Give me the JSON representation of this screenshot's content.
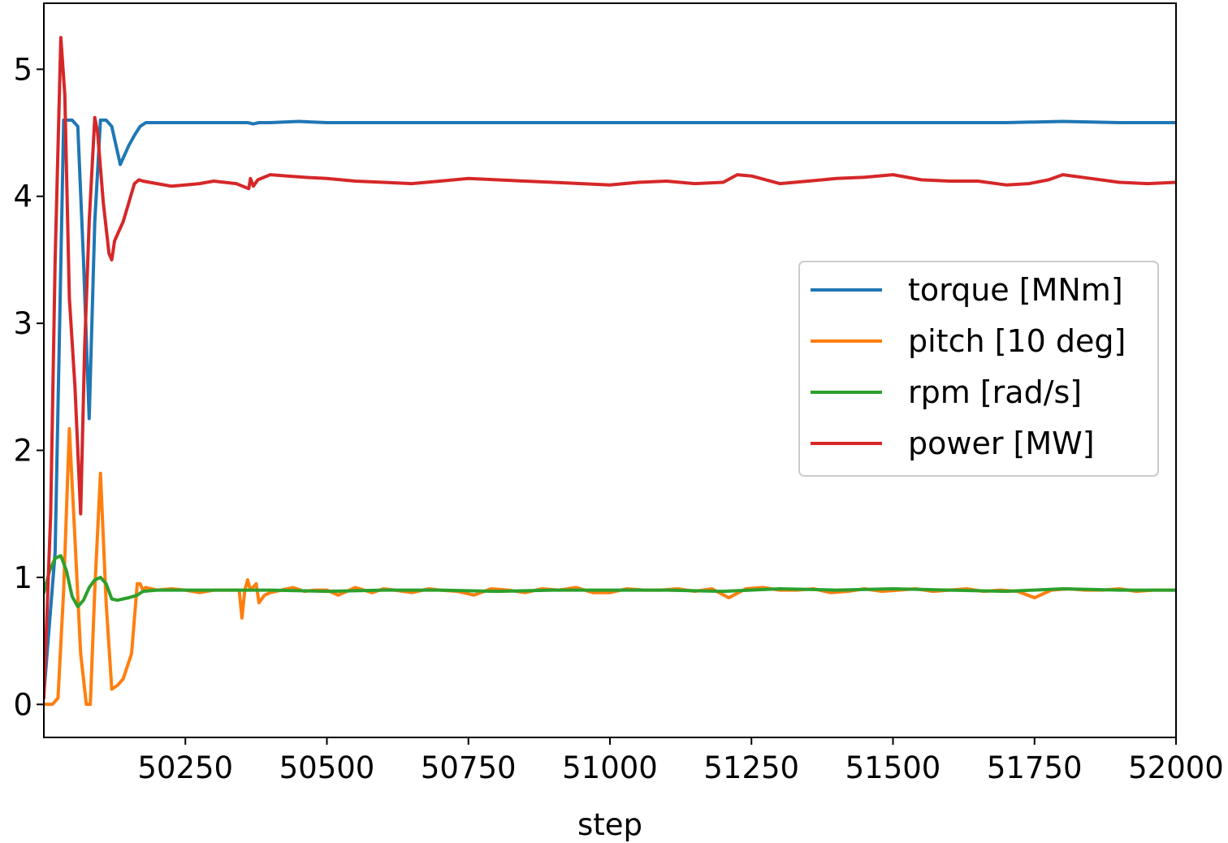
{
  "chart_data": {
    "type": "line",
    "title": "",
    "xlabel": "step",
    "ylabel": "",
    "xlim": [
      50000,
      52000
    ],
    "ylim": [
      -0.26,
      5.52
    ],
    "x_ticks": [
      50250,
      50500,
      50750,
      51000,
      51250,
      51500,
      51750,
      52000
    ],
    "y_ticks": [
      0,
      1,
      2,
      3,
      4,
      5
    ],
    "grid": false,
    "legend_position": "center-right",
    "series": [
      {
        "name": "torque [MNm]",
        "color": "#1f77b4",
        "x": [
          50000,
          50020,
          50035,
          50050,
          50060,
          50070,
          50080,
          50090,
          50100,
          50110,
          50120,
          50135,
          50150,
          50160,
          50170,
          50180,
          50200,
          50250,
          50300,
          50360,
          50370,
          50380,
          50400,
          50450,
          50500,
          50600,
          50700,
          50800,
          50900,
          51000,
          51100,
          51200,
          51300,
          51400,
          51500,
          51600,
          51700,
          51800,
          51900,
          52000
        ],
        "y": [
          0.08,
          1.2,
          4.6,
          4.6,
          4.55,
          3.5,
          2.25,
          3.8,
          4.6,
          4.6,
          4.55,
          4.25,
          4.4,
          4.48,
          4.55,
          4.58,
          4.58,
          4.58,
          4.58,
          4.58,
          4.57,
          4.58,
          4.58,
          4.59,
          4.58,
          4.58,
          4.58,
          4.58,
          4.58,
          4.58,
          4.58,
          4.58,
          4.58,
          4.58,
          4.58,
          4.58,
          4.58,
          4.59,
          4.58,
          4.58
        ]
      },
      {
        "name": "pitch [10 deg]",
        "color": "#ff7f0e",
        "x": [
          50000,
          50010,
          50015,
          50025,
          50035,
          50045,
          50055,
          50065,
          50075,
          50082,
          50090,
          50100,
          50110,
          50120,
          50130,
          50140,
          50155,
          50165,
          50170,
          50175,
          50180,
          50200,
          50225,
          50250,
          50275,
          50300,
          50345,
          50350,
          50355,
          50360,
          50365,
          50375,
          50380,
          50390,
          50400,
          50420,
          50440,
          50460,
          50480,
          50500,
          50520,
          50550,
          50580,
          50600,
          50620,
          50650,
          50680,
          50700,
          50730,
          50760,
          50790,
          50820,
          50850,
          50880,
          50910,
          50940,
          50970,
          51000,
          51030,
          51060,
          51090,
          51120,
          51150,
          51180,
          51210,
          51240,
          51270,
          51300,
          51330,
          51360,
          51390,
          51420,
          51450,
          51480,
          51510,
          51540,
          51570,
          51600,
          51630,
          51660,
          51690,
          51720,
          51750,
          51780,
          51810,
          51840,
          51870,
          51900,
          51930,
          51960,
          52000
        ],
        "y": [
          0.0,
          0.0,
          0.0,
          0.05,
          0.9,
          2.17,
          1.3,
          0.4,
          0.0,
          0.0,
          0.9,
          1.82,
          0.8,
          0.12,
          0.15,
          0.2,
          0.4,
          0.95,
          0.95,
          0.9,
          0.92,
          0.9,
          0.91,
          0.9,
          0.88,
          0.9,
          0.9,
          0.68,
          0.9,
          0.98,
          0.9,
          0.95,
          0.8,
          0.86,
          0.88,
          0.9,
          0.92,
          0.89,
          0.9,
          0.9,
          0.86,
          0.92,
          0.88,
          0.91,
          0.9,
          0.88,
          0.91,
          0.9,
          0.89,
          0.86,
          0.91,
          0.9,
          0.88,
          0.91,
          0.9,
          0.92,
          0.88,
          0.88,
          0.91,
          0.9,
          0.9,
          0.91,
          0.89,
          0.91,
          0.84,
          0.91,
          0.92,
          0.9,
          0.9,
          0.91,
          0.88,
          0.89,
          0.91,
          0.89,
          0.9,
          0.91,
          0.89,
          0.9,
          0.91,
          0.89,
          0.9,
          0.89,
          0.84,
          0.9,
          0.91,
          0.9,
          0.9,
          0.91,
          0.89,
          0.9,
          0.9
        ]
      },
      {
        "name": "rpm [rad/s]",
        "color": "#2ca02c",
        "x": [
          50000,
          50010,
          50020,
          50030,
          50040,
          50050,
          50060,
          50070,
          50080,
          50090,
          50100,
          50110,
          50120,
          50130,
          50140,
          50150,
          50165,
          50175,
          50200,
          50300,
          50400,
          50500,
          50600,
          50700,
          50800,
          50900,
          51000,
          51100,
          51200,
          51300,
          51400,
          51500,
          51600,
          51700,
          51800,
          51900,
          52000
        ],
        "y": [
          0.88,
          1.05,
          1.15,
          1.17,
          1.05,
          0.85,
          0.77,
          0.82,
          0.92,
          0.98,
          1.0,
          0.95,
          0.83,
          0.82,
          0.83,
          0.84,
          0.86,
          0.89,
          0.9,
          0.9,
          0.9,
          0.89,
          0.9,
          0.9,
          0.89,
          0.9,
          0.9,
          0.9,
          0.89,
          0.91,
          0.9,
          0.91,
          0.9,
          0.89,
          0.91,
          0.9,
          0.9
        ]
      },
      {
        "name": "power [MW]",
        "color": "#d62728",
        "x": [
          50000,
          50012,
          50020,
          50030,
          50037,
          50045,
          50055,
          50065,
          50072,
          50080,
          50090,
          50095,
          50105,
          50115,
          50120,
          50125,
          50130,
          50140,
          50150,
          50160,
          50168,
          50175,
          50200,
          50225,
          50250,
          50275,
          50300,
          50340,
          50362,
          50365,
          50370,
          50378,
          50400,
          50430,
          50460,
          50500,
          50550,
          50600,
          50650,
          50700,
          50750,
          50800,
          50850,
          50900,
          50950,
          51000,
          51050,
          51100,
          51150,
          51200,
          51225,
          51250,
          51300,
          51350,
          51400,
          51450,
          51500,
          51550,
          51600,
          51650,
          51700,
          51740,
          51775,
          51800,
          51850,
          51900,
          51950,
          52000
        ],
        "y": [
          0.05,
          1.5,
          3.5,
          5.25,
          4.8,
          3.2,
          2.5,
          1.5,
          2.8,
          3.8,
          4.62,
          4.5,
          3.95,
          3.55,
          3.5,
          3.65,
          3.7,
          3.8,
          3.95,
          4.1,
          4.13,
          4.12,
          4.1,
          4.08,
          4.09,
          4.1,
          4.12,
          4.1,
          4.06,
          4.14,
          4.08,
          4.13,
          4.17,
          4.16,
          4.15,
          4.14,
          4.12,
          4.11,
          4.1,
          4.12,
          4.14,
          4.13,
          4.12,
          4.11,
          4.1,
          4.09,
          4.11,
          4.12,
          4.1,
          4.11,
          4.17,
          4.16,
          4.1,
          4.12,
          4.14,
          4.15,
          4.17,
          4.13,
          4.12,
          4.12,
          4.09,
          4.1,
          4.13,
          4.17,
          4.14,
          4.11,
          4.1,
          4.11
        ]
      }
    ]
  }
}
